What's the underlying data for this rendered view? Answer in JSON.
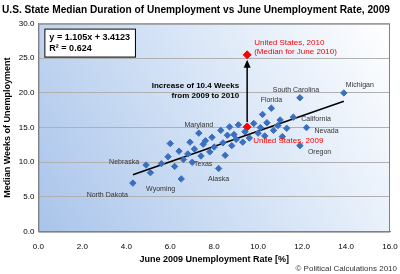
{
  "chart_data": {
    "type": "scatter",
    "title": "U.S. State Median Duration of Unemployment vs June Unemployment Rate, 2009",
    "x_label": "June 2009 Unemployment Rate [%]",
    "y_label": "Median Weeks of Unemployment",
    "xlim": [
      0,
      16
    ],
    "xticks": [
      {
        "value": 0,
        "label": "0.0"
      },
      {
        "value": 2,
        "label": "2.0"
      },
      {
        "value": 4,
        "label": "4.0"
      },
      {
        "value": 6,
        "label": "6.0"
      },
      {
        "value": 8,
        "label": "8.0"
      },
      {
        "value": 10,
        "label": "10.0"
      },
      {
        "value": 12,
        "label": "12.0"
      },
      {
        "value": 14,
        "label": "14.0"
      },
      {
        "value": 16,
        "label": "16.0"
      }
    ],
    "ylim": [
      0,
      30
    ],
    "yticks": [
      {
        "value": 0,
        "label": "0.0"
      },
      {
        "value": 5,
        "label": "5.0"
      },
      {
        "value": 10,
        "label": "10.0"
      },
      {
        "value": 15,
        "label": "15.0"
      },
      {
        "value": 20,
        "label": "20.0"
      },
      {
        "value": 25,
        "label": "25.0"
      },
      {
        "value": 30,
        "label": "30.0"
      }
    ],
    "grid": true,
    "equation": [
      "y = 1.105x + 3.4123",
      "R² = 0.624"
    ],
    "credit": "© Political Calculations 2010",
    "series": [
      {
        "type": "scatter",
        "color": "#3a6fbf",
        "marker": "diamond",
        "x": [
          4.3,
          4.9,
          5.1,
          5.6,
          5.9,
          6.2,
          6.4,
          6.5,
          6.6,
          6.8,
          6.9,
          7.0,
          7.1,
          7.3,
          7.4,
          7.5,
          7.6,
          7.8,
          7.9,
          8.0,
          8.2,
          8.3,
          8.4,
          8.5,
          8.6,
          8.7,
          8.8,
          8.9,
          9.0,
          9.1,
          9.3,
          9.4,
          9.6,
          9.8,
          10.0,
          10.1,
          10.3,
          10.4,
          10.6,
          10.7,
          10.9,
          11.0,
          11.1,
          11.3,
          11.6,
          11.9,
          11.9,
          12.2,
          10.2,
          13.9,
          6.0
        ],
        "values": [
          7.0,
          9.6,
          8.5,
          9.8,
          10.8,
          9.4,
          11.6,
          7.6,
          10.4,
          11.2,
          12.9,
          10.0,
          11.9,
          14.2,
          10.9,
          12.6,
          13.1,
          11.5,
          13.6,
          12.2,
          9.1,
          14.6,
          12.8,
          11.0,
          13.9,
          15.1,
          12.4,
          14.0,
          13.3,
          15.4,
          12.9,
          14.4,
          13.5,
          15.6,
          14.2,
          15.0,
          13.8,
          15.7,
          17.8,
          14.6,
          15.3,
          16.1,
          13.7,
          14.9,
          16.5,
          12.4,
          19.3,
          15.0,
          16.9,
          20.0,
          12.7
        ],
        "labels": [
          "North Dakota",
          "Nebraska",
          null,
          null,
          null,
          null,
          null,
          "Wyoming",
          null,
          null,
          null,
          null,
          null,
          "Maryland",
          null,
          "Texas",
          null,
          null,
          null,
          null,
          "Alaska",
          null,
          null,
          null,
          null,
          null,
          null,
          null,
          null,
          null,
          null,
          null,
          null,
          null,
          null,
          null,
          null,
          null,
          "Florida",
          null,
          null,
          null,
          null,
          null,
          "California",
          "Oregon",
          "South Carolina",
          "Nevada",
          null,
          "Michigan",
          null
        ]
      },
      {
        "type": "line",
        "color": "#000000",
        "line_style": "solid",
        "x": [
          4.3,
          13.9
        ],
        "values": [
          8.2,
          18.8
        ]
      },
      {
        "type": "scatter",
        "color": "#ff0000",
        "marker": "diamond",
        "x": [
          9.5,
          9.5
        ],
        "values": [
          15.1,
          25.5
        ],
        "labels": [
          "United States, 2009",
          [
            "United States, 2010",
            "(Median for June 2010)"
          ]
        ],
        "annotation": [
          "Increase of 10.4 Weeks",
          "from 2009 to 2010"
        ]
      }
    ]
  }
}
